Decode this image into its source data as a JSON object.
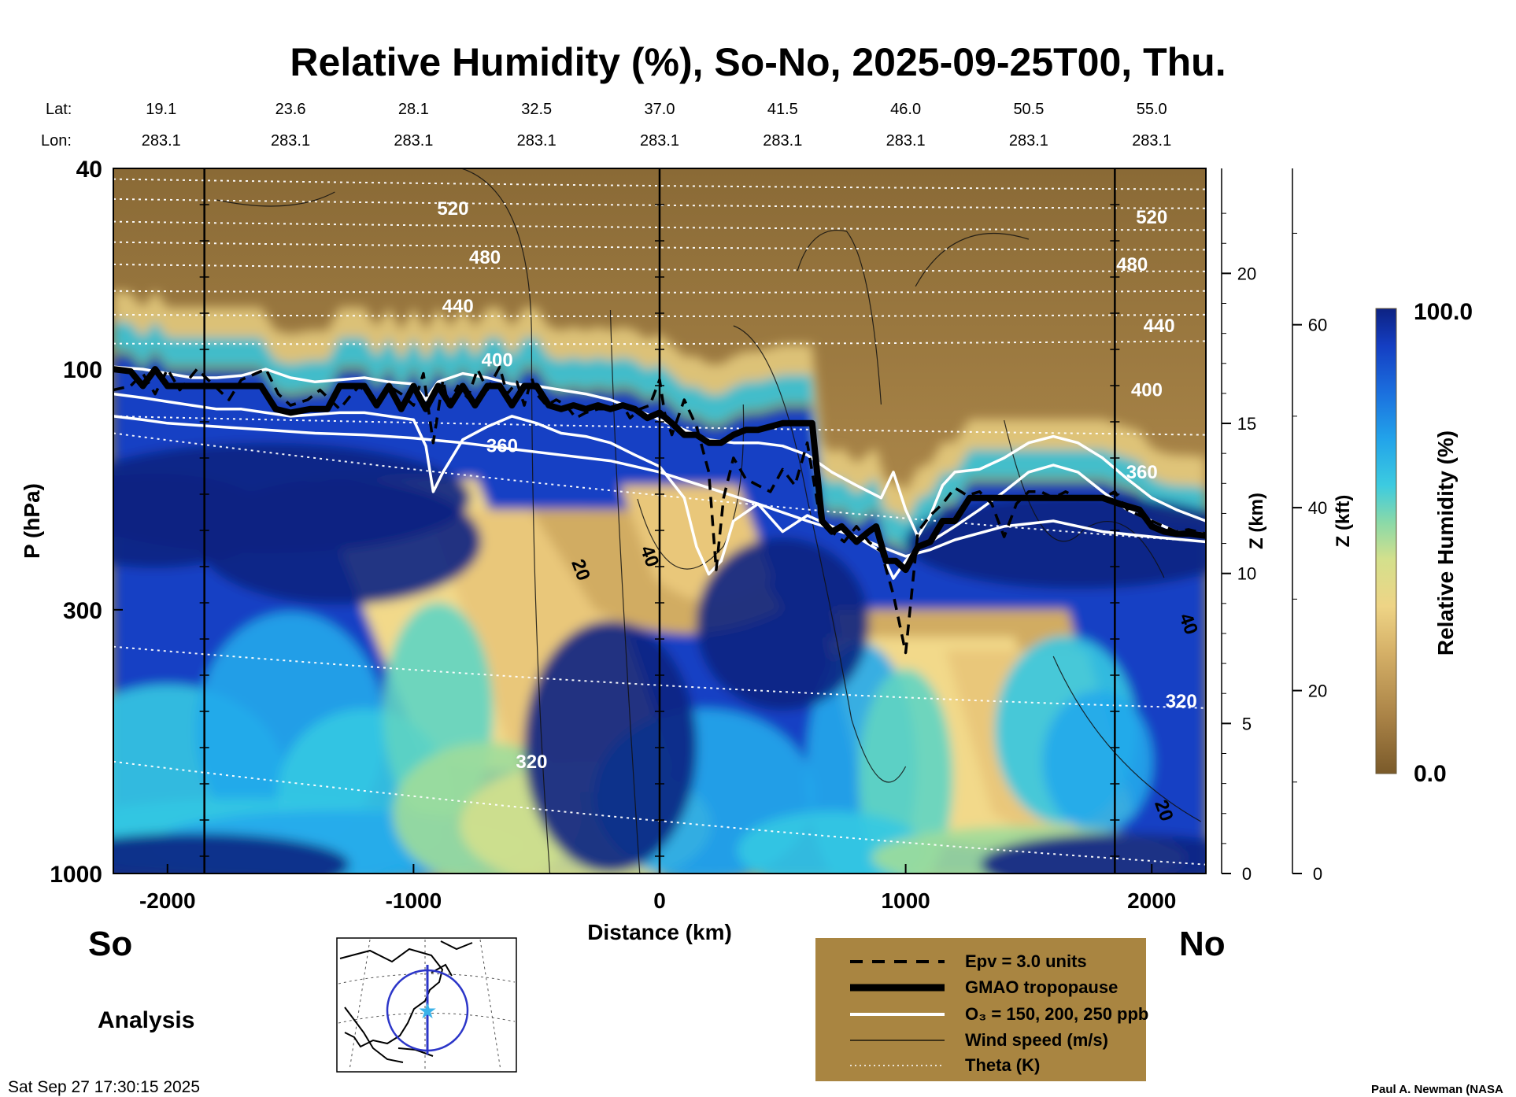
{
  "chart_data": {
    "type": "heatmap",
    "title": "Relative Humidity (%), So-No, 2025-09-25T00, Thu.",
    "xlabel": "Distance (km)",
    "ylabel": "P (hPa)",
    "y2label": "Z (km)",
    "y3label": "Z (kft)",
    "xlim": [
      -2220,
      2220
    ],
    "ylim": [
      1000,
      40
    ],
    "x_ticks": [
      "-2000",
      "-1000",
      "0",
      "1000",
      "2000"
    ],
    "x_tick_values": [
      -2000,
      -1000,
      0,
      1000,
      2000
    ],
    "y_ticks": [
      "40",
      "100",
      "300",
      "1000"
    ],
    "y_tick_values": [
      40,
      100,
      300,
      1000
    ],
    "z_km_ticks": [
      "0",
      "5",
      "10",
      "15",
      "20"
    ],
    "z_kft_ticks": [
      "0",
      "20",
      "40",
      "60"
    ],
    "lat_label": "Lat:",
    "lon_label": "Lon:",
    "lat_values": [
      "19.1",
      "23.6",
      "28.1",
      "32.5",
      "37.0",
      "41.5",
      "46.0",
      "50.5",
      "55.0"
    ],
    "lon_values": [
      "283.1",
      "283.1",
      "283.1",
      "283.1",
      "283.1",
      "283.1",
      "283.1",
      "283.1",
      "283.1"
    ],
    "lat_positions_km": [
      -2000,
      -1500,
      -1000,
      -500,
      0,
      500,
      1000,
      1500,
      2000
    ],
    "vertical_lines_km": [
      -1850,
      0,
      1850
    ],
    "theta_labels": [
      {
        "text": "520",
        "x": -840,
        "p": 48
      },
      {
        "text": "480",
        "x": -710,
        "p": 60
      },
      {
        "text": "440",
        "x": -820,
        "p": 75
      },
      {
        "text": "400",
        "x": -660,
        "p": 96
      },
      {
        "text": "360",
        "x": -640,
        "p": 142
      },
      {
        "text": "320",
        "x": -520,
        "p": 600
      },
      {
        "text": "520",
        "x": 2000,
        "p": 50
      },
      {
        "text": "480",
        "x": 1920,
        "p": 62
      },
      {
        "text": "440",
        "x": 2030,
        "p": 82
      },
      {
        "text": "400",
        "x": 1980,
        "p": 110
      },
      {
        "text": "360",
        "x": 1960,
        "p": 160
      },
      {
        "text": "320",
        "x": 2120,
        "p": 455
      }
    ],
    "wind_labels": [
      {
        "text": "20",
        "x": -320,
        "p": 250
      },
      {
        "text": "40",
        "x": -40,
        "p": 235
      },
      {
        "text": "40",
        "x": 2150,
        "p": 320
      },
      {
        "text": "20",
        "x": 2050,
        "p": 750
      }
    ],
    "tropopause": {
      "x": [
        -2220,
        -2150,
        -2100,
        -2050,
        -2000,
        -1950,
        -1900,
        -1850,
        -1700,
        -1620,
        -1560,
        -1500,
        -1420,
        -1350,
        -1300,
        -1250,
        -1200,
        -1150,
        -1100,
        -1050,
        -1000,
        -950,
        -900,
        -850,
        -800,
        -750,
        -700,
        -650,
        -600,
        -550,
        -500,
        -450,
        -400,
        -350,
        -300,
        -250,
        -200,
        -150,
        -100,
        -50,
        0,
        50,
        100,
        150,
        200,
        250,
        300,
        350,
        400,
        450,
        500,
        550,
        600,
        620,
        660,
        700,
        740,
        800,
        850,
        880,
        920,
        960,
        1000,
        1050,
        1100,
        1150,
        1200,
        1260,
        1400,
        1600,
        1800,
        1870,
        1950,
        2000,
        2050,
        2100,
        2150,
        2220
      ],
      "p": [
        100,
        101,
        108,
        100,
        108,
        108,
        108,
        108,
        108,
        108,
        120,
        122,
        120,
        120,
        108,
        108,
        108,
        118,
        108,
        120,
        108,
        120,
        108,
        118,
        108,
        118,
        108,
        108,
        118,
        108,
        108,
        118,
        120,
        118,
        120,
        118,
        120,
        118,
        120,
        125,
        122,
        128,
        135,
        135,
        140,
        140,
        135,
        132,
        132,
        130,
        128,
        128,
        128,
        128,
        200,
        210,
        205,
        220,
        210,
        205,
        240,
        240,
        250,
        225,
        220,
        200,
        200,
        180,
        180,
        180,
        180,
        185,
        190,
        205,
        210,
        212,
        212,
        214
      ]
    },
    "epv_line": {
      "x": [
        -2220,
        -2150,
        -2100,
        -2050,
        -2000,
        -1950,
        -1880,
        -1750,
        -1700,
        -1600,
        -1550,
        -1500,
        -1430,
        -1380,
        -1300,
        -1250,
        -1220,
        -1150,
        -1100,
        -1050,
        -1000,
        -960,
        -920,
        -880,
        -860,
        -820,
        -780,
        -740,
        -700,
        -650,
        -620,
        -580,
        -550,
        -520,
        -500,
        -460,
        -420,
        -380,
        -340,
        -300,
        -250,
        -200,
        -150,
        -120,
        -80,
        -40,
        0,
        20,
        50,
        100,
        150,
        200,
        230,
        260,
        300,
        350,
        400,
        450,
        500,
        550,
        600,
        650,
        700,
        750,
        800,
        850,
        900,
        950,
        1000,
        1050,
        1100,
        1150,
        1200,
        1250,
        1300,
        1350,
        1400,
        1450,
        1500,
        1550,
        1600,
        1650,
        1700,
        1750,
        1800,
        1850,
        1900,
        1950,
        2000,
        2050,
        2100,
        2150,
        2220
      ],
      "p": [
        110,
        108,
        102,
        112,
        100,
        110,
        100,
        115,
        105,
        100,
        112,
        118,
        115,
        110,
        120,
        112,
        108,
        116,
        108,
        112,
        118,
        102,
        140,
        105,
        118,
        108,
        114,
        100,
        110,
        99,
        112,
        106,
        118,
        104,
        112,
        118,
        115,
        118,
        125,
        122,
        120,
        120,
        118,
        125,
        120,
        118,
        105,
        122,
        135,
        115,
        130,
        160,
        250,
        180,
        150,
        165,
        170,
        175,
        158,
        170,
        140,
        195,
        210,
        220,
        205,
        220,
        230,
        280,
        365,
        210,
        195,
        185,
        172,
        178,
        175,
        185,
        215,
        185,
        175,
        175,
        180,
        175,
        180,
        180,
        180,
        175,
        190,
        195,
        200,
        205,
        210,
        208,
        212
      ]
    },
    "o3_contours": [
      {
        "name": "150 ppb",
        "x": [
          -2220,
          -2100,
          -2000,
          -1900,
          -1800,
          -1700,
          -1600,
          -1500,
          -1400,
          -1300,
          -1200,
          -1100,
          -1000,
          -950,
          -900,
          -800,
          -700,
          -600,
          -500,
          -400,
          -300,
          -200,
          -100,
          0,
          100,
          200,
          300,
          400,
          500,
          600,
          700,
          800,
          900,
          950,
          1000,
          1050,
          1100,
          1150,
          1200,
          1300,
          1400,
          1500,
          1600,
          1700,
          1800,
          1900,
          2000,
          2100,
          2220
        ],
        "p": [
          99,
          100,
          102,
          104,
          104,
          103,
          100,
          104,
          106,
          105,
          104,
          106,
          107,
          115,
          106,
          102,
          104,
          107,
          108,
          110,
          112,
          115,
          120,
          126,
          132,
          138,
          140,
          140,
          142,
          148,
          160,
          170,
          180,
          160,
          190,
          215,
          195,
          170,
          160,
          158,
          150,
          140,
          136,
          140,
          150,
          165,
          180,
          190,
          200
        ]
      },
      {
        "name": "200 ppb",
        "x": [
          -2220,
          -2100,
          -2000,
          -1900,
          -1800,
          -1700,
          -1600,
          -1500,
          -1400,
          -1300,
          -1200,
          -1100,
          -1000,
          -950,
          -920,
          -880,
          -800,
          -700,
          -600,
          -500,
          -400,
          -300,
          -200,
          -100,
          0,
          100,
          150,
          200,
          250,
          300,
          400,
          500,
          600,
          700,
          800,
          900,
          950,
          1000,
          1050,
          1100,
          1200,
          1300,
          1400,
          1500,
          1600,
          1700,
          1800,
          1900,
          2000,
          2100,
          2220
        ],
        "p": [
          112,
          114,
          116,
          118,
          120,
          120,
          122,
          124,
          123,
          122,
          122,
          124,
          126,
          142,
          175,
          160,
          138,
          130,
          124,
          128,
          134,
          136,
          140,
          148,
          156,
          180,
          225,
          255,
          240,
          200,
          185,
          210,
          195,
          205,
          215,
          230,
          260,
          240,
          225,
          220,
          205,
          190,
          175,
          160,
          155,
          160,
          175,
          190,
          200,
          210,
          212
        ]
      },
      {
        "name": "250 ppb",
        "x": [
          -2220,
          -2100,
          -2000,
          -1800,
          -1600,
          -1400,
          -1200,
          -1000,
          -800,
          -600,
          -400,
          -200,
          0,
          200,
          400,
          600,
          800,
          900,
          1000,
          1100,
          1200,
          1400,
          1600,
          1800,
          2000,
          2220
        ],
        "p": [
          124,
          126,
          128,
          130,
          132,
          134,
          135,
          137,
          140,
          144,
          148,
          152,
          160,
          172,
          185,
          200,
          215,
          225,
          235,
          228,
          218,
          205,
          200,
          210,
          215,
          220
        ]
      }
    ],
    "theta_levels": [
      {
        "name": "520 K",
        "p_left": 42,
        "p_right": 44
      },
      {
        "name": "500 K",
        "p_left": 46,
        "p_right": 48
      },
      {
        "name": "480 K",
        "p_left": 51,
        "p_right": 53
      },
      {
        "name": "460 K",
        "p_left": 56,
        "p_right": 58
      },
      {
        "name": "440 K",
        "p_left": 62,
        "p_right": 64
      },
      {
        "name": "420 K",
        "p_left": 70,
        "p_right": 70
      },
      {
        "name": "400 K",
        "p_left": 78,
        "p_right": 78
      },
      {
        "name": "380 K",
        "p_left": 89,
        "p_right": 88
      },
      {
        "name": "360 K",
        "p_left": 124,
        "p_right": 135
      },
      {
        "name": "340 K",
        "p_left": 134,
        "p_right": 220
      },
      {
        "name": "320 K",
        "p_left": 355,
        "p_right": 470
      },
      {
        "name": "300 K",
        "p_left": 600,
        "p_right": 960
      }
    ],
    "colorbar": {
      "label": "Relative Humidity (%)",
      "max_label": "100.0",
      "min_label": "0.0",
      "min": 0.0,
      "max": 100.0,
      "colors": [
        "#7a5a2a",
        "#95743b",
        "#b48f50",
        "#d1ac62",
        "#e9c77a",
        "#f2d98a",
        "#d3e08c",
        "#9fdc9a",
        "#5fd4c2",
        "#34c8e2",
        "#23a9eb",
        "#1f86e8",
        "#1a63db",
        "#1440c4",
        "#0f2ea6",
        "#0d2282"
      ]
    },
    "legend": {
      "placement": "bottom-center",
      "items": [
        {
          "label": "Epv = 3.0 units",
          "style": "dashed-black"
        },
        {
          "label": "GMAO tropopause",
          "style": "thick-black"
        },
        {
          "label": "O₃ = 150, 200, 250 ppb",
          "style": "white"
        },
        {
          "label": "Wind speed (m/s)",
          "style": "thin-black"
        },
        {
          "label": "Theta (K)",
          "style": "dotted-white"
        }
      ]
    }
  },
  "labels": {
    "south": "So",
    "north": "No",
    "analysis": "Analysis",
    "timestamp": "Sat Sep 27 17:30:15 2025",
    "author": "Paul A. Newman (NASA"
  },
  "colors": {
    "background": "#ffffff",
    "legend_box": "#a98541",
    "map_circle": "#2c36c8",
    "map_star": "#3ab2e8"
  }
}
